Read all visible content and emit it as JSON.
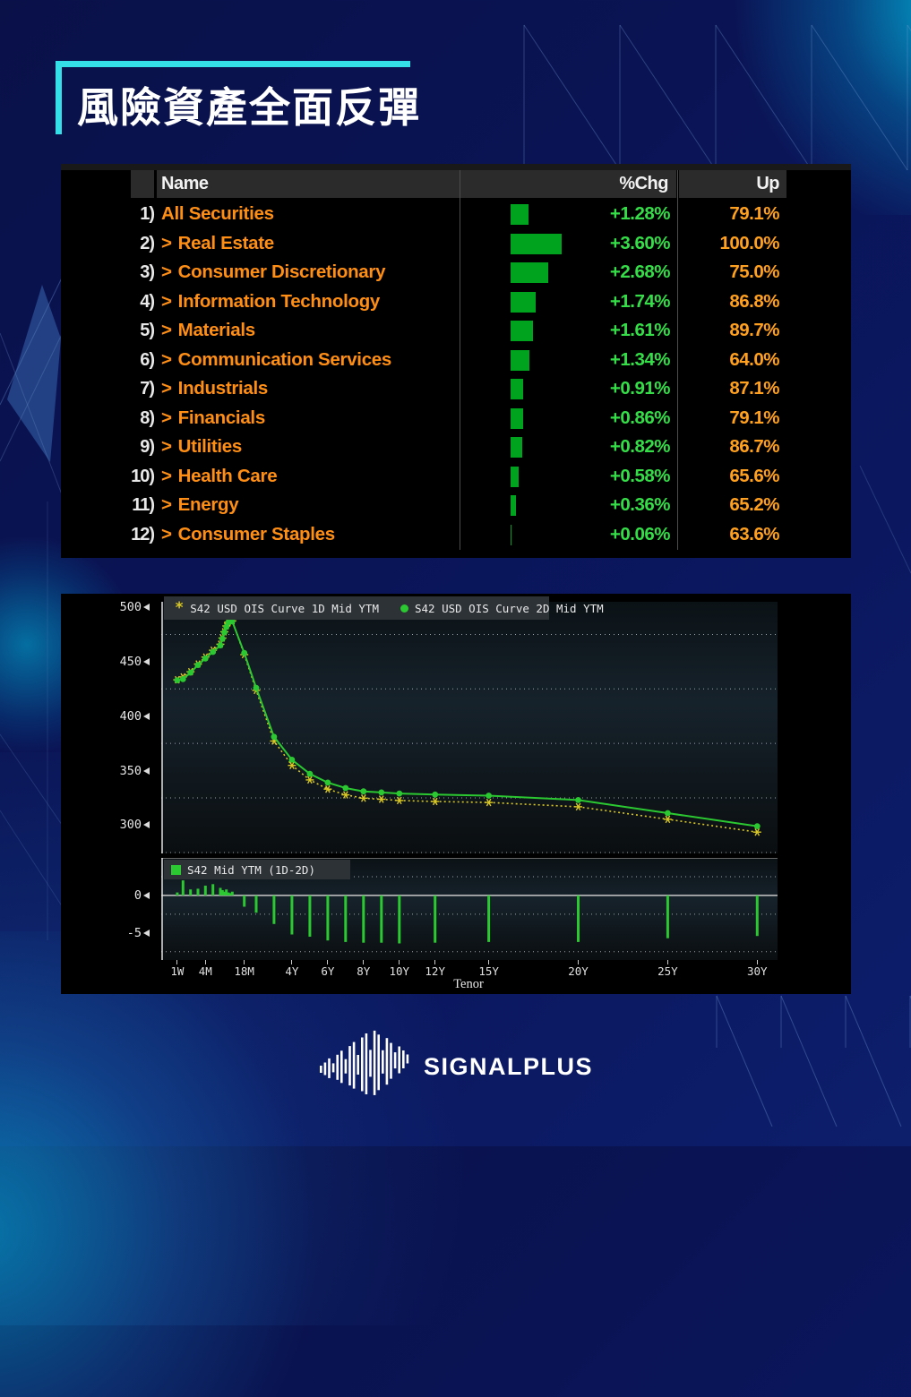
{
  "title": "風險資產全面反彈",
  "table": {
    "headers": {
      "name": "Name",
      "chg": "%Chg",
      "up": "Up"
    },
    "rows": [
      {
        "num": "1)",
        "chevron": "",
        "name": "All Securities",
        "chg": "+1.28%",
        "chg_val": 1.28,
        "up": "79.1%"
      },
      {
        "num": "2)",
        "chevron": ">",
        "name": "Real Estate",
        "chg": "+3.60%",
        "chg_val": 3.6,
        "up": "100.0%"
      },
      {
        "num": "3)",
        "chevron": ">",
        "name": "Consumer Discretionary",
        "chg": "+2.68%",
        "chg_val": 2.68,
        "up": "75.0%"
      },
      {
        "num": "4)",
        "chevron": ">",
        "name": "Information Technology",
        "chg": "+1.74%",
        "chg_val": 1.74,
        "up": "86.8%"
      },
      {
        "num": "5)",
        "chevron": ">",
        "name": "Materials",
        "chg": "+1.61%",
        "chg_val": 1.61,
        "up": "89.7%"
      },
      {
        "num": "6)",
        "chevron": ">",
        "name": "Communication Services",
        "chg": "+1.34%",
        "chg_val": 1.34,
        "up": "64.0%"
      },
      {
        "num": "7)",
        "chevron": ">",
        "name": "Industrials",
        "chg": "+0.91%",
        "chg_val": 0.91,
        "up": "87.1%"
      },
      {
        "num": "8)",
        "chevron": ">",
        "name": "Financials",
        "chg": "+0.86%",
        "chg_val": 0.86,
        "up": "79.1%"
      },
      {
        "num": "9)",
        "chevron": ">",
        "name": "Utilities",
        "chg": "+0.82%",
        "chg_val": 0.82,
        "up": "86.7%"
      },
      {
        "num": "10)",
        "chevron": ">",
        "name": "Health Care",
        "chg": "+0.58%",
        "chg_val": 0.58,
        "up": "65.6%"
      },
      {
        "num": "11)",
        "chevron": ">",
        "name": "Energy",
        "chg": "+0.36%",
        "chg_val": 0.36,
        "up": "65.2%"
      },
      {
        "num": "12)",
        "chevron": ">",
        "name": "Consumer Staples",
        "chg": "+0.06%",
        "chg_val": 0.06,
        "up": "63.6%"
      }
    ]
  },
  "chart_data": {
    "type": "line",
    "xlabel": "Tenor",
    "tenors": [
      {
        "label": "1W",
        "years": 0.019
      },
      {
        "label": "1M",
        "years": 0.083
      },
      {
        "label": "2M",
        "years": 0.167
      },
      {
        "label": "3M",
        "years": 0.25
      },
      {
        "label": "4M",
        "years": 0.333
      },
      {
        "label": "5M",
        "years": 0.417
      },
      {
        "label": "6M",
        "years": 0.5
      },
      {
        "label": "7M",
        "years": 0.583
      },
      {
        "label": "8M",
        "years": 0.667
      },
      {
        "label": "9M",
        "years": 0.75
      },
      {
        "label": "10M",
        "years": 0.833
      },
      {
        "label": "11M",
        "years": 0.917
      },
      {
        "label": "1Y",
        "years": 1.0
      },
      {
        "label": "18M",
        "years": 1.5
      },
      {
        "label": "2Y",
        "years": 2
      },
      {
        "label": "3Y",
        "years": 3
      },
      {
        "label": "4Y",
        "years": 4
      },
      {
        "label": "5Y",
        "years": 5
      },
      {
        "label": "6Y",
        "years": 6
      },
      {
        "label": "7Y",
        "years": 7
      },
      {
        "label": "8Y",
        "years": 8
      },
      {
        "label": "9Y",
        "years": 9
      },
      {
        "label": "10Y",
        "years": 10
      },
      {
        "label": "12Y",
        "years": 12
      },
      {
        "label": "15Y",
        "years": 15
      },
      {
        "label": "20Y",
        "years": 20
      },
      {
        "label": "25Y",
        "years": 25
      },
      {
        "label": "30Y",
        "years": 30
      }
    ],
    "series": [
      {
        "name": "S42 USD OIS Curve 1D Mid YTM",
        "color": "#d9c826",
        "marker": "asterisk",
        "style": "dotted",
        "values": [
          433.4,
          436.0,
          440.8,
          447.9,
          454.3,
          460.5,
          466.0,
          471.7,
          477.5,
          482.8,
          486.4,
          488.3,
          487.5,
          456.5,
          423.7,
          377.2,
          354.8,
          341.5,
          333.0,
          327.8,
          324.7,
          323.7,
          322.6,
          321.7,
          320.8,
          316.8,
          305.3,
          293.6
        ]
      },
      {
        "name": "S42 USD OIS Curve 2D Mid YTM",
        "color": "#2bc831",
        "marker": "circle",
        "style": "solid",
        "values": [
          433,
          434,
          440,
          447,
          453,
          459,
          465,
          471,
          477,
          482,
          486,
          488,
          487,
          458,
          426,
          381,
          360,
          347,
          339,
          334,
          331,
          330,
          329,
          328,
          327,
          323,
          311,
          299
        ]
      }
    ],
    "main_axis": {
      "ylim": [
        274,
        505
      ],
      "yticks": [
        500,
        450,
        400,
        350,
        300
      ],
      "gridlines": [
        475,
        425,
        375,
        325
      ]
    },
    "sub_series": {
      "name": "S42 Mid YTM (1D-2D)",
      "color": "#2bc831",
      "type": "bar",
      "values": [
        0.4,
        2.0,
        0.8,
        0.9,
        1.3,
        1.5,
        1.0,
        0.7,
        0.5,
        0.8,
        0.4,
        0.3,
        0.5,
        -1.5,
        -2.3,
        -3.8,
        -5.2,
        -5.5,
        -6.0,
        -6.2,
        -6.3,
        -6.3,
        -6.4,
        -6.3,
        -6.2,
        -6.2,
        -5.7,
        -5.4
      ],
      "ylim": [
        -8.6,
        5
      ],
      "yticks": [
        0,
        -5
      ],
      "gridlines": [
        2.5,
        -2.5,
        -7.5
      ]
    },
    "xticks": [
      {
        "label": "1W",
        "years": 0.019
      },
      {
        "label": "4M",
        "years": 0.333
      },
      {
        "label": "18M",
        "years": 1.5
      },
      {
        "label": "4Y",
        "years": 4
      },
      {
        "label": "6Y",
        "years": 6
      },
      {
        "label": "8Y",
        "years": 8
      },
      {
        "label": "10Y",
        "years": 10
      },
      {
        "label": "12Y",
        "years": 12
      },
      {
        "label": "15Y",
        "years": 15
      },
      {
        "label": "20Y",
        "years": 20
      },
      {
        "label": "25Y",
        "years": 25
      },
      {
        "label": "30Y",
        "years": 30
      }
    ]
  },
  "footer": {
    "brand": "SIGNALPLUS"
  },
  "colors": {
    "accent_cyan": "#35dfe8",
    "green_text": "#35dd48",
    "green_bar": "#00a31d",
    "orange": "#ff9a1e",
    "yellow_series": "#d9c826",
    "green_series": "#2bc831"
  }
}
